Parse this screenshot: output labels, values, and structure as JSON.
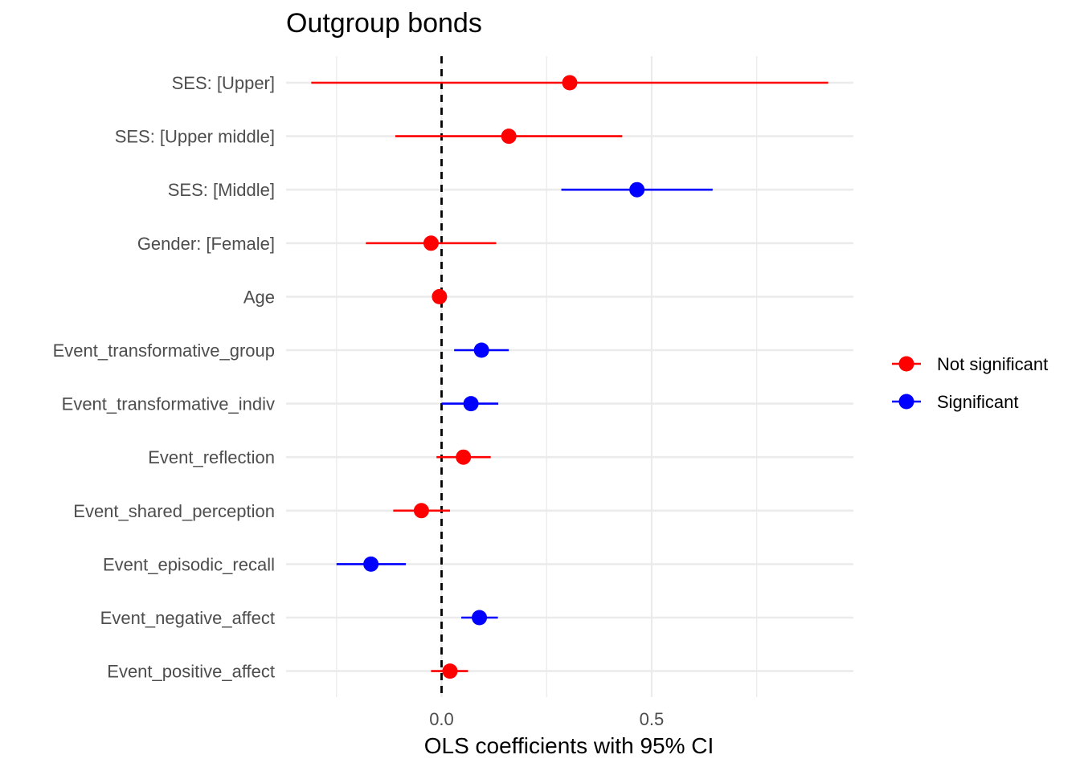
{
  "chart_data": {
    "type": "scatter",
    "title": "Outgroup bonds",
    "xlabel": "OLS coefficients with 95% CI",
    "ylabel": "",
    "xlim": [
      -0.37,
      0.98
    ],
    "xticks": [
      {
        "value": 0.0,
        "label": "0.0"
      },
      {
        "value": 0.5,
        "label": "0.5"
      }
    ],
    "x_minor_gridlines": [
      -0.25,
      0.25,
      0.75
    ],
    "reference_line": {
      "x": 0,
      "style": "dashed"
    },
    "grid": true,
    "legend_position": "right",
    "legend": [
      {
        "label": "Not significant",
        "color": "#ff0000"
      },
      {
        "label": "Significant",
        "color": "#0000ff"
      }
    ],
    "terms": [
      {
        "label": "SES:  [Upper]",
        "estimate": 0.305,
        "low": -0.31,
        "high": 0.92,
        "group": "Not significant"
      },
      {
        "label": "SES:  [Upper middle]",
        "estimate": 0.16,
        "low": -0.11,
        "high": 0.43,
        "group": "Not significant"
      },
      {
        "label": "SES:  [Middle]",
        "estimate": 0.465,
        "low": 0.285,
        "high": 0.645,
        "group": "Significant"
      },
      {
        "label": "Gender:  [Female]",
        "estimate": -0.025,
        "low": -0.18,
        "high": 0.13,
        "group": "Not significant"
      },
      {
        "label": "Age",
        "estimate": -0.005,
        "low": -0.012,
        "high": 0.002,
        "group": "Not significant"
      },
      {
        "label": "Event_transformative_group",
        "estimate": 0.095,
        "low": 0.03,
        "high": 0.16,
        "group": "Significant"
      },
      {
        "label": "Event_transformative_indiv",
        "estimate": 0.07,
        "low": 0.0,
        "high": 0.135,
        "group": "Significant"
      },
      {
        "label": "Event_reflection",
        "estimate": 0.052,
        "low": -0.012,
        "high": 0.117,
        "group": "Not significant"
      },
      {
        "label": "Event_shared_perception",
        "estimate": -0.048,
        "low": -0.115,
        "high": 0.02,
        "group": "Not significant"
      },
      {
        "label": "Event_episodic_recall",
        "estimate": -0.168,
        "low": -0.25,
        "high": -0.085,
        "group": "Significant"
      },
      {
        "label": "Event_negative_affect",
        "estimate": 0.09,
        "low": 0.047,
        "high": 0.134,
        "group": "Significant"
      },
      {
        "label": "Event_positive_affect",
        "estimate": 0.02,
        "low": -0.025,
        "high": 0.063,
        "group": "Not significant"
      }
    ]
  }
}
